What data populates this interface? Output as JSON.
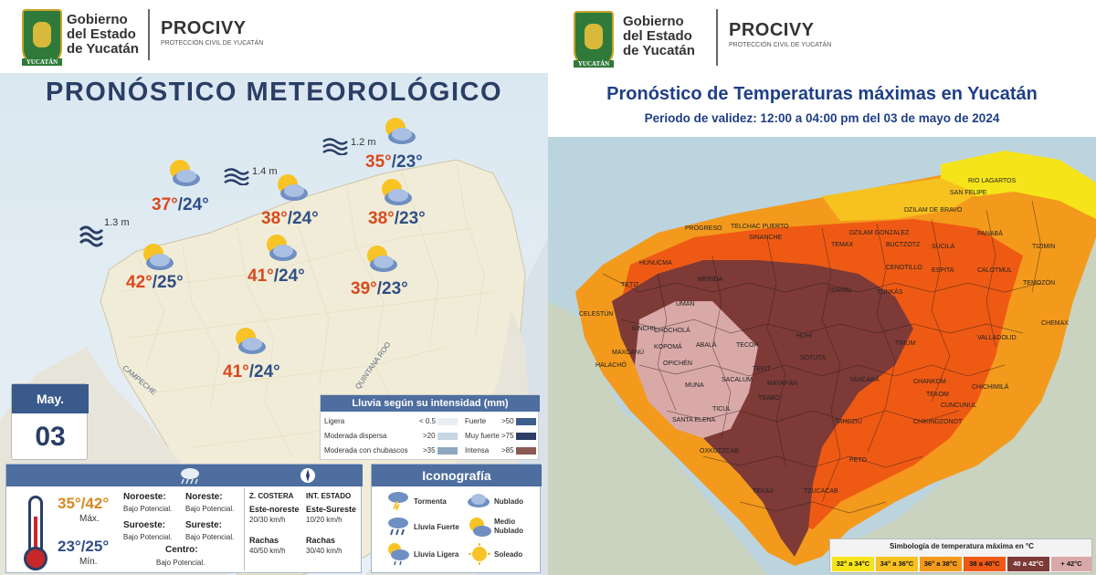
{
  "left": {
    "header": {
      "gov_line1": "Gobierno",
      "gov_line2": "del Estado",
      "gov_line3": "de Yucatán",
      "shield_text": "YUCATÁN",
      "agency": "PROCIVY",
      "agency_sub": "PROTECCIÓN CIVIL DE YUCATÁN"
    },
    "title": "PRONÓSTICO METEOROLÓGICO",
    "waves": [
      {
        "label": "1.3 m"
      },
      {
        "label": "1.4 m"
      },
      {
        "label": "1.2 m"
      }
    ],
    "forecasts": [
      {
        "max": "37°",
        "min": "/24°"
      },
      {
        "max": "38°",
        "min": "/24°"
      },
      {
        "max": "35°",
        "min": "/23°"
      },
      {
        "max": "38°",
        "min": "/23°"
      },
      {
        "max": "42°",
        "min": "/25°"
      },
      {
        "max": "41°",
        "min": "/24°"
      },
      {
        "max": "39°",
        "min": "/23°"
      },
      {
        "max": "41°",
        "min": "/24°"
      }
    ],
    "state_labels": {
      "campeche": "CAMPECHE",
      "quintana_roo": "QUINTANA ROO"
    },
    "calendar": {
      "month": "May.",
      "day": "03"
    },
    "rain_legend": {
      "title": "Lluvia según su intensidad",
      "unit": "(mm)",
      "rows": [
        {
          "label": "Ligera",
          "range": "< 0.5",
          "color": "#e8eef2"
        },
        {
          "label": "Moderada dispersa",
          "range": ">20",
          "color": "#c7d6e2"
        },
        {
          "label": "Moderada con chubascos",
          "range": ">35",
          "color": "#8fa8c0"
        },
        {
          "label": "Fuerte",
          "range": ">50",
          "color": "#3e5f8c"
        },
        {
          "label": "Muy fuerte",
          "range": ">75",
          "color": "#2a3e66"
        },
        {
          "label": "Intensa",
          "range": ">85",
          "color": "#8a5a55"
        }
      ]
    },
    "summary": {
      "temp_max": "35°/42°",
      "max_label": "Máx.",
      "temp_min": "23°/25°",
      "min_label": "Mín.",
      "regions": [
        {
          "name": "Noroeste:",
          "status": "Bajo Potencial."
        },
        {
          "name": "Noreste:",
          "status": "Bajo Potencial."
        },
        {
          "name": "Suroeste:",
          "status": "Bajo Potencial."
        },
        {
          "name": "Sureste:",
          "status": "Bajo Potencial."
        },
        {
          "name": "Centro:",
          "status": "Bajo Potencial."
        }
      ],
      "coastal_title": "Z. COSTERA",
      "interior_title": "INT. ESTADO",
      "coastal_wind_dir": "Este-noreste",
      "coastal_wind_speed": "20/30 km/h",
      "interior_wind_dir": "Este-Sureste",
      "interior_wind_speed": "10/20 km/h",
      "gusts_label": "Rachas",
      "coastal_gusts": "40/50 km/h",
      "interior_gusts": "30/40 km/h"
    },
    "iconography": {
      "title": "Iconografía",
      "items": [
        {
          "label": "Tormenta",
          "icon": "storm-icon"
        },
        {
          "label": "Nublado",
          "icon": "cloud-icon"
        },
        {
          "label": "Lluvia Fuerte",
          "icon": "heavy-rain-icon"
        },
        {
          "label": "Medio Nublado",
          "icon": "partly-cloudy-icon"
        },
        {
          "label": "Lluvia Ligera",
          "icon": "light-rain-icon"
        },
        {
          "label": "Soleado",
          "icon": "sun-icon"
        }
      ]
    }
  },
  "right": {
    "header": {
      "gov_line1": "Gobierno",
      "gov_line2": "del Estado",
      "gov_line3": "de Yucatán",
      "shield_text": "YUCATÁN",
      "agency": "PROCIVY",
      "agency_sub": "PROTECCIÓN CIVIL DE YUCATÁN"
    },
    "title": "Pronóstico de Temperaturas máximas en Yucatán",
    "subtitle": "Periodo de validez: 12:00 a 04:00 pm del 03 de mayo de 2024",
    "municipalities": [
      "RIO LAGARTOS",
      "SAN FELIPE",
      "DZILAM DE BRAVO",
      "TELCHAC PUERTO",
      "DZILAM GONZALEZ",
      "PANABÁ",
      "TIZIMIN",
      "PROGRESO",
      "SINANCHE",
      "TEMAX",
      "BUCTZOTZ",
      "SUCILÁ",
      "HUNUCMA",
      "UMAN",
      "MERIDA",
      "CENOTILLO",
      "ESPITA",
      "CALOTMUL",
      "TEMOZÓN",
      "CELESTÚN",
      "TETIZ",
      "IZAMAL",
      "TUNKÁS",
      "CHEMAX",
      "KINCHIL",
      "CHOCHOLÁ",
      "ABALÁ",
      "TECOH",
      "HUHÍ",
      "SOTUTA",
      "TINUM",
      "VALLADOLID",
      "MAXCANÚ",
      "KOPOMÁ",
      "OPICHÉN",
      "TEKIT",
      "YAXCABÁ",
      "HALACHÓ",
      "MUNA",
      "SACALUM",
      "MAYAPÁN",
      "CHANKOM",
      "CHICHIMILÁ",
      "TEABO",
      "TEKOM",
      "CUNCUNUL",
      "SANTA ELENA",
      "TICUL",
      "TAHDZIÚ",
      "CHIKINDZONOT",
      "OXKUTZCAB",
      "PETO",
      "TEKAX",
      "TZUCACAB"
    ],
    "legend": {
      "title": "Simbología de temperatura máxima en °C",
      "bins": [
        {
          "label": "32° a 34°C",
          "color": "#f6e41a"
        },
        {
          "label": "34° a 36°C",
          "color": "#f7c21f"
        },
        {
          "label": "36° a 38°C",
          "color": "#f39a1c"
        },
        {
          "label": "38 a 40°C",
          "color": "#ee5a14"
        },
        {
          "label": "40 a 42°C",
          "color": "#7d3a37"
        },
        {
          "label": "+ 42°C",
          "color": "#d9a9a8"
        }
      ]
    }
  }
}
